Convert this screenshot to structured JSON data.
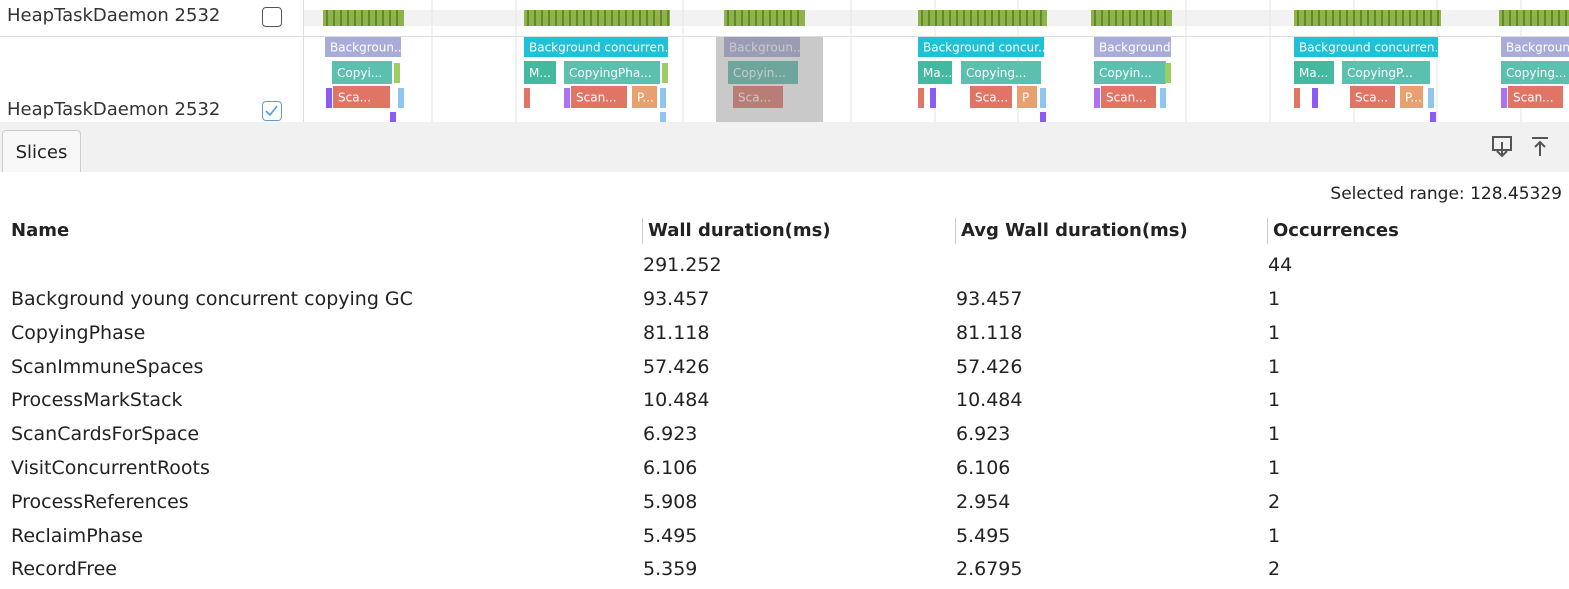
{
  "tracks": [
    {
      "name": "HeapTaskDaemon 2532",
      "checked": false
    },
    {
      "name": "HeapTaskDaemon 2532",
      "checked": true
    }
  ],
  "slices": [
    "Backgroun...",
    "Copyi...",
    "Sca...",
    "Background concurren...",
    "M...",
    "CopyingPha...",
    "Scan...",
    "P...",
    "Backgroun...",
    "Copyin...",
    "Sca...",
    "Background concur...",
    "Ma...",
    "Copying...",
    "Sca...",
    "P",
    "Background...",
    "Copyin...",
    "Scan...",
    "Background concurren...",
    "Ma...",
    "CopyingP...",
    "Sca...",
    "P...",
    "Background",
    "Copying...",
    "Scan..."
  ],
  "tab": "Slices",
  "selected_range": "Selected range: 128.45329",
  "table": {
    "headers": [
      "Name",
      "Wall duration(ms)",
      "Avg Wall duration(ms)",
      "Occurrences"
    ],
    "totals": {
      "wall": "291.252",
      "occurrences": "44"
    },
    "rows": [
      [
        "Background young concurrent copying GC",
        "93.457",
        "93.457",
        "1"
      ],
      [
        "CopyingPhase",
        "81.118",
        "81.118",
        "1"
      ],
      [
        "ScanImmuneSpaces",
        "57.426",
        "57.426",
        "1"
      ],
      [
        "ProcessMarkStack",
        "10.484",
        "10.484",
        "1"
      ],
      [
        "ScanCardsForSpace",
        "6.923",
        "6.923",
        "1"
      ],
      [
        "VisitConcurrentRoots",
        "6.106",
        "6.106",
        "1"
      ],
      [
        "ProcessReferences",
        "5.908",
        "2.954",
        "2"
      ],
      [
        "ReclaimPhase",
        "5.495",
        "5.495",
        "1"
      ],
      [
        "RecordFree",
        "5.359",
        "2.6795",
        "2"
      ]
    ]
  }
}
